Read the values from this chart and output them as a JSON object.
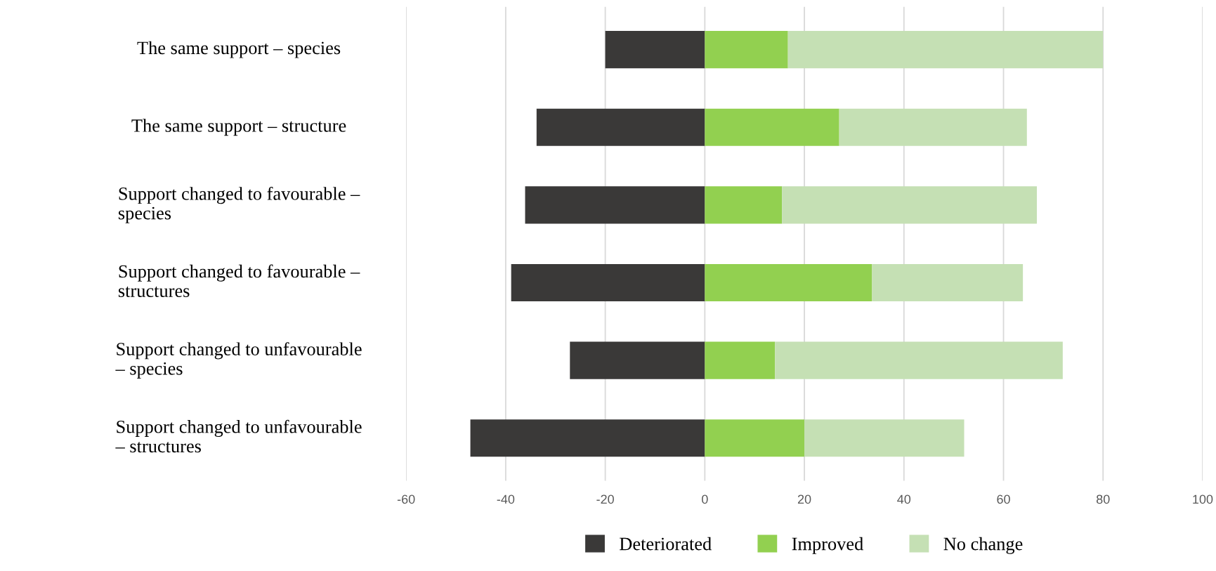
{
  "chart_data": {
    "type": "bar",
    "orientation": "horizontal",
    "stacked": true,
    "categories": [
      "The same support – species",
      "The same support – structure",
      "Support changed to favourable –\nspecies",
      "Support changed to favourable –\nstructures",
      "Support changed to unfavourable\n– species",
      "Support changed to unfavourable\n– structures"
    ],
    "series": [
      {
        "name": "Deteriorated",
        "color": "#3a3938",
        "values": [
          -20,
          -33.8,
          -36.1,
          -38.9,
          -27.1,
          -47.1
        ]
      },
      {
        "name": "Improved",
        "color": "#92d050",
        "values": [
          16.7,
          27,
          15.5,
          33.6,
          14.1,
          20
        ]
      },
      {
        "name": "No change",
        "color": "#c5e0b4",
        "values": [
          63.3,
          37.7,
          51.2,
          30.3,
          57.8,
          32.1
        ]
      }
    ],
    "xlim": [
      -60,
      100
    ],
    "xticks": [
      -60,
      -40,
      -20,
      0,
      20,
      40,
      60,
      80,
      100
    ],
    "grid": "x",
    "legend": "bottom"
  }
}
